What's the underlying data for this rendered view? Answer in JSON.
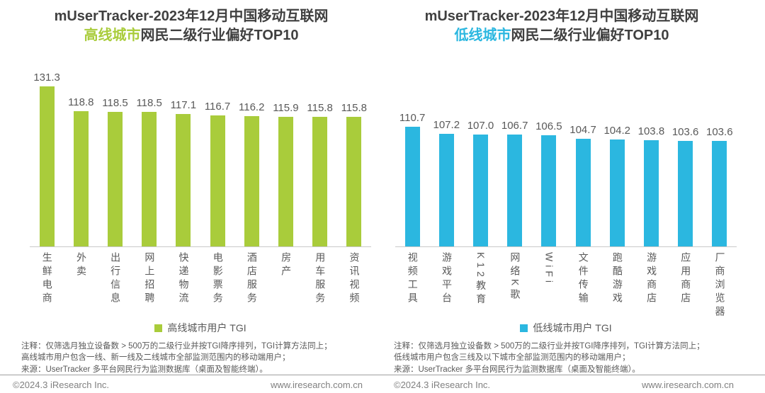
{
  "panels": [
    {
      "title_prefix": "mUserTracker-2023年12月中国移动互联网",
      "title_highlight": "高线城市",
      "title_suffix": "网民二级行业偏好TOP10",
      "legend_label": "高线城市用户 TGI",
      "notes": [
        "注释：仅筛选月独立设备数 > 500万的二级行业并按TGI降序排列，TGI计算方法同上；",
        "高线城市用户包含一线、新一线及二线城市全部监测范围内的移动端用户；",
        "来源：UserTracker 多平台网民行为监测数据库（桌面及智能终端）。"
      ],
      "footer_left": "©2024.3 iResearch Inc.",
      "footer_right": "www.iresearch.com.cn"
    },
    {
      "title_prefix": "mUserTracker-2023年12月中国移动互联网",
      "title_highlight": "低线城市",
      "title_suffix": "网民二级行业偏好TOP10",
      "legend_label": "低线城市用户 TGI",
      "notes": [
        "注释：仅筛选月独立设备数 > 500万的二级行业并按TGI降序排列，TGI计算方法同上；",
        "低线城市用户包含三线及以下城市全部监测范围内的移动端用户；",
        "来源：UserTracker 多平台网民行为监测数据库（桌面及智能终端）。"
      ],
      "footer_left": "©2024.3 iResearch Inc.",
      "footer_right": "www.iresearch.com.cn"
    }
  ],
  "chart_data": [
    {
      "type": "bar",
      "title": "mUserTracker-2023年12月中国移动互联网 高线城市网民二级行业偏好TOP10",
      "categories": [
        "生鲜电商",
        "外卖",
        "出行信息",
        "网上招聘",
        "快递物流",
        "电影票务",
        "酒店服务",
        "房产",
        "用车服务",
        "资讯视频"
      ],
      "values": [
        131.3,
        118.8,
        118.5,
        118.5,
        117.1,
        116.7,
        116.2,
        115.9,
        115.8,
        115.8
      ],
      "series_name": "高线城市用户 TGI",
      "ylabel": "TGI",
      "ylim": [
        50,
        132
      ],
      "grid": false,
      "data_labels": true,
      "legend_position": "bottom",
      "bar_color": "#a9cc3b",
      "value_label_color": "#595959"
    },
    {
      "type": "bar",
      "title": "mUserTracker-2023年12月中国移动互联网 低线城市网民二级行业偏好TOP10",
      "categories": [
        "视频工具",
        "游戏平台",
        "K12教育",
        "网络K歌",
        "WiFi",
        "文件传输",
        "跑酷游戏",
        "游戏商店",
        "应用商店",
        "厂商浏览器"
      ],
      "values": [
        110.7,
        107.2,
        107.0,
        106.7,
        106.5,
        104.7,
        104.2,
        103.8,
        103.6,
        103.6
      ],
      "series_name": "低线城市用户 TGI",
      "ylabel": "TGI",
      "ylim": [
        50,
        132
      ],
      "grid": false,
      "data_labels": true,
      "legend_position": "bottom",
      "bar_color": "#2bb7e0",
      "value_label_color": "#595959"
    }
  ]
}
